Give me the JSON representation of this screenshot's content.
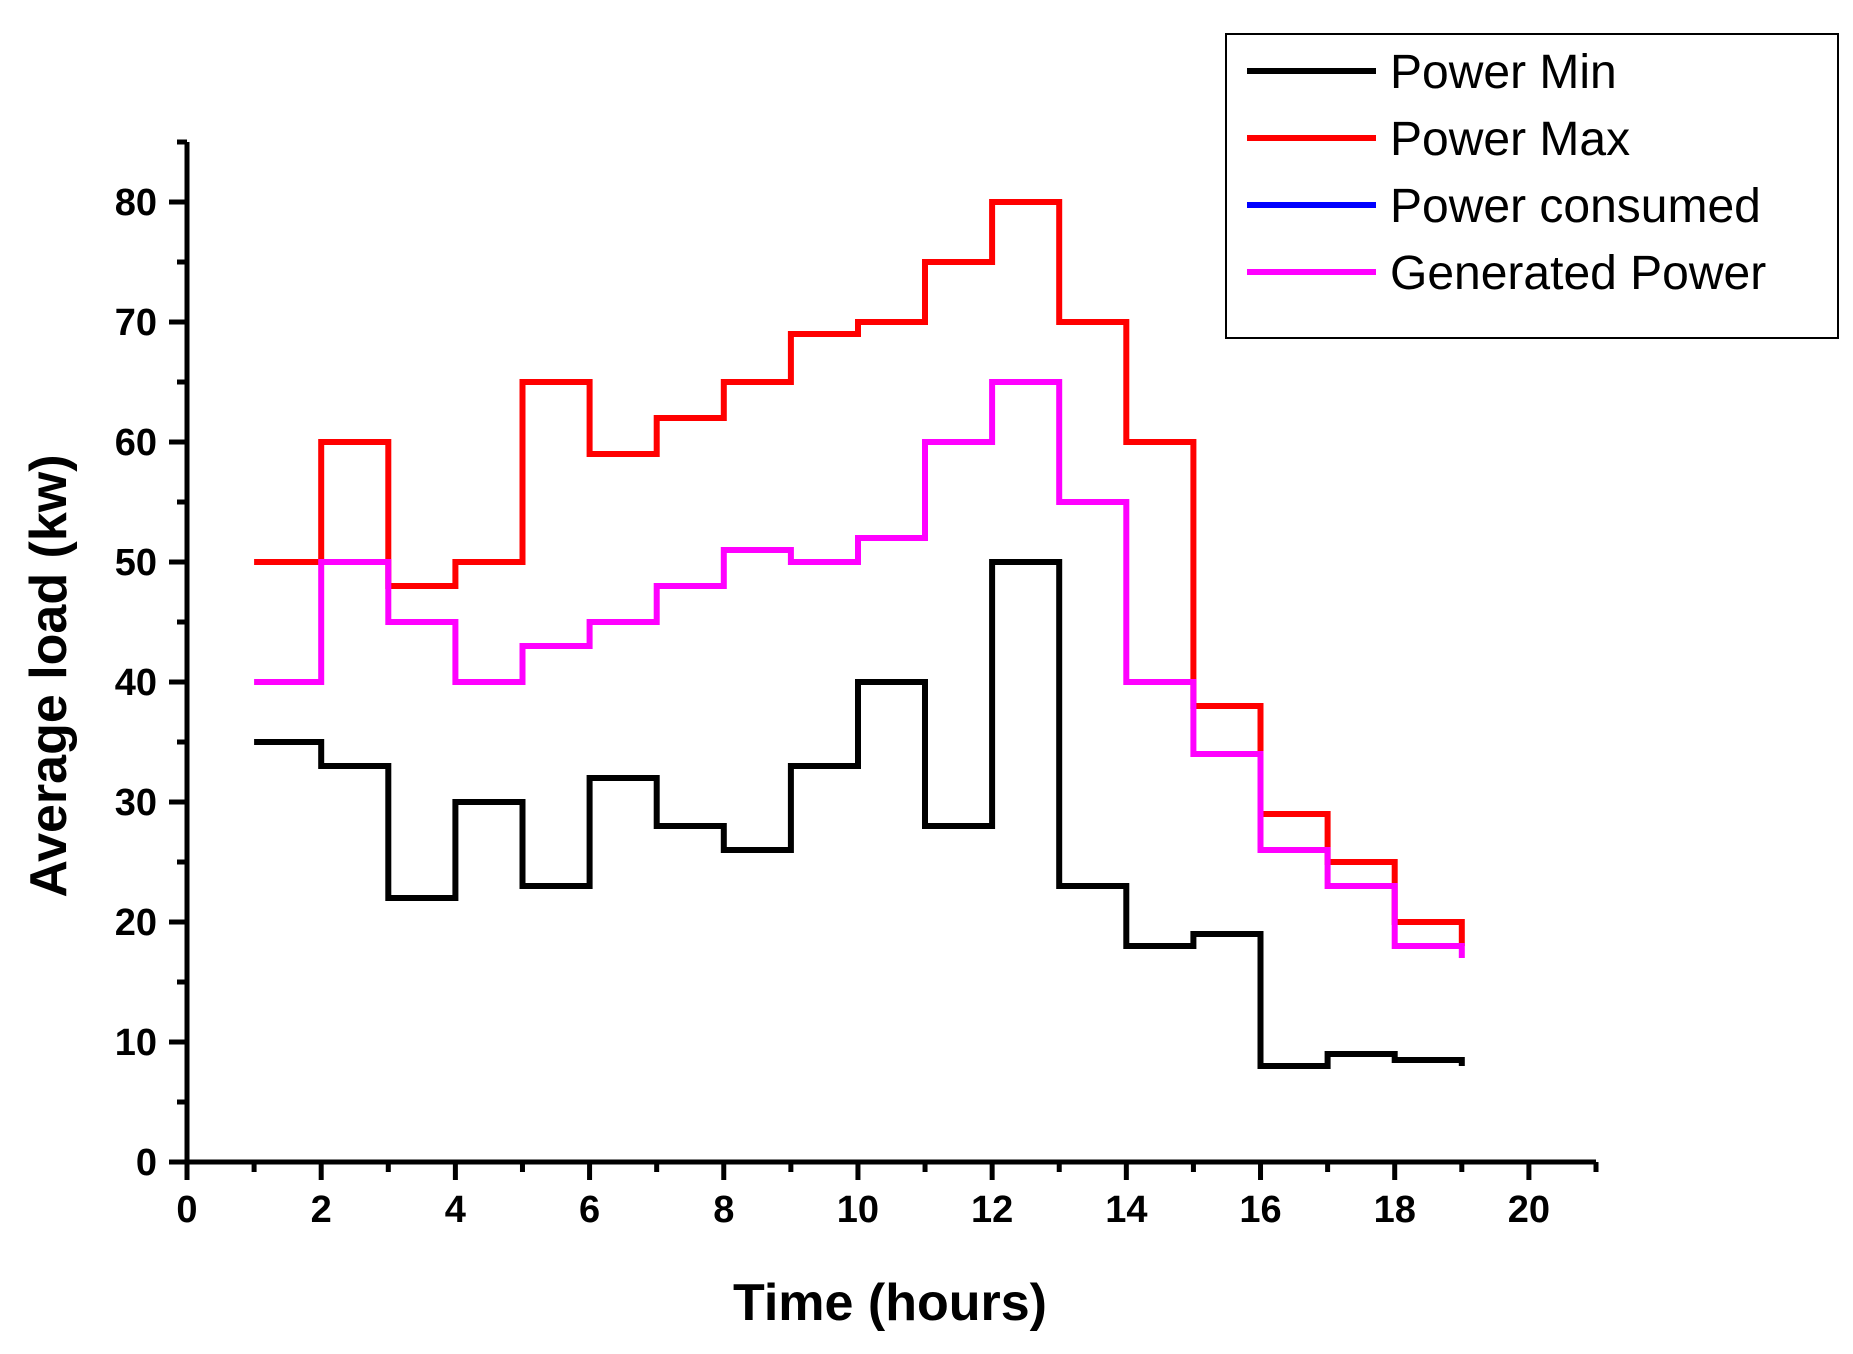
{
  "chart_data": {
    "type": "line",
    "step": true,
    "xlabel": "Time (hours)",
    "ylabel": "Average load (kw)",
    "xlim": [
      0,
      21
    ],
    "ylim": [
      0,
      85
    ],
    "xticks": [
      0,
      2,
      4,
      6,
      8,
      10,
      12,
      14,
      16,
      18,
      20
    ],
    "yticks": [
      0,
      10,
      20,
      30,
      40,
      50,
      60,
      70,
      80
    ],
    "grid": false,
    "legend_position": "top-right",
    "series": [
      {
        "name": "Power Min",
        "color": "#000000",
        "x": [
          1,
          2,
          3,
          4,
          5,
          6,
          7,
          8,
          9,
          10,
          11,
          12,
          13,
          14,
          15,
          16,
          17,
          18,
          19
        ],
        "y": [
          35,
          33,
          22,
          30,
          23,
          32,
          28,
          26,
          33,
          40,
          28,
          50,
          23,
          18,
          19,
          8,
          9,
          8.5,
          8
        ]
      },
      {
        "name": "Power Max",
        "color": "#ff0000",
        "x": [
          1,
          2,
          3,
          4,
          5,
          6,
          7,
          8,
          9,
          10,
          11,
          12,
          13,
          14,
          15,
          16,
          17,
          18,
          19
        ],
        "y": [
          50,
          60,
          48,
          50,
          65,
          59,
          62,
          65,
          69,
          70,
          75,
          80,
          70,
          60,
          38,
          29,
          25,
          20,
          18
        ]
      },
      {
        "name": "Power consumed",
        "color": "#0000ff",
        "x": [],
        "y": []
      },
      {
        "name": "Generated Power",
        "color": "#ff00ff",
        "x": [
          1,
          2,
          3,
          4,
          5,
          6,
          7,
          8,
          9,
          10,
          11,
          12,
          13,
          14,
          15,
          16,
          17,
          18,
          19
        ],
        "y": [
          40,
          50,
          45,
          40,
          43,
          45,
          48,
          51,
          50,
          52,
          60,
          65,
          55,
          40,
          34,
          26,
          23,
          18,
          17
        ]
      }
    ]
  }
}
